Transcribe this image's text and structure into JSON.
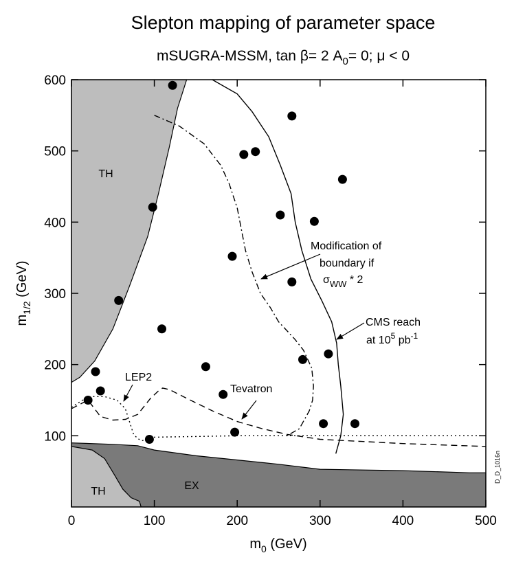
{
  "chart_data": {
    "type": "scatter",
    "title": "Slepton mapping of parameter space",
    "subtitle": {
      "prefix": "mSUGRA-MSSM, tan ",
      "beta": "β",
      "mid": "= 2 A",
      "sub": "0",
      "suffix": "= 0; ",
      "mu": "μ",
      "end": " < 0"
    },
    "xlabel": {
      "main": "m",
      "sub": "0",
      "rest": " (GeV)"
    },
    "ylabel": {
      "main": "m",
      "sub": "1/2",
      "rest": " (GeV)"
    },
    "xlim": [
      0,
      500
    ],
    "ylim": [
      0,
      600
    ],
    "xticks": [
      0,
      100,
      200,
      300,
      400,
      500
    ],
    "yticks": [
      100,
      200,
      300,
      400,
      500,
      600
    ],
    "grid": false,
    "points": [
      {
        "x": 122,
        "y": 592
      },
      {
        "x": 266,
        "y": 549
      },
      {
        "x": 208,
        "y": 495
      },
      {
        "x": 222,
        "y": 499
      },
      {
        "x": 327,
        "y": 460
      },
      {
        "x": 98,
        "y": 421
      },
      {
        "x": 252,
        "y": 410
      },
      {
        "x": 293,
        "y": 401
      },
      {
        "x": 194,
        "y": 352
      },
      {
        "x": 266,
        "y": 316
      },
      {
        "x": 57,
        "y": 290
      },
      {
        "x": 109,
        "y": 250
      },
      {
        "x": 279,
        "y": 207
      },
      {
        "x": 310,
        "y": 215
      },
      {
        "x": 162,
        "y": 197
      },
      {
        "x": 29,
        "y": 190
      },
      {
        "x": 35,
        "y": 163
      },
      {
        "x": 20,
        "y": 150
      },
      {
        "x": 183,
        "y": 158
      },
      {
        "x": 197,
        "y": 105
      },
      {
        "x": 94,
        "y": 95
      },
      {
        "x": 304,
        "y": 117
      },
      {
        "x": 342,
        "y": 117
      }
    ],
    "regions": {
      "theory_upper": {
        "label": "TH",
        "boundary": [
          [
            0,
            175
          ],
          [
            10,
            182
          ],
          [
            28,
            205
          ],
          [
            50,
            250
          ],
          [
            70,
            310
          ],
          [
            92,
            380
          ],
          [
            105,
            440
          ],
          [
            118,
            505
          ],
          [
            128,
            560
          ],
          [
            139,
            600
          ]
        ]
      },
      "theory_lower": {
        "label": "TH",
        "boundary": [
          [
            0,
            85
          ],
          [
            25,
            80
          ],
          [
            40,
            68
          ],
          [
            52,
            45
          ],
          [
            62,
            25
          ],
          [
            72,
            13
          ],
          [
            82,
            8
          ],
          [
            84,
            0
          ]
        ]
      },
      "excluded": {
        "label": "EX",
        "boundary": [
          [
            0,
            90
          ],
          [
            50,
            88
          ],
          [
            80,
            86
          ],
          [
            100,
            80
          ],
          [
            150,
            72
          ],
          [
            250,
            60
          ],
          [
            300,
            53
          ],
          [
            400,
            51
          ],
          [
            480,
            48
          ],
          [
            500,
            48
          ]
        ]
      }
    },
    "series": [
      {
        "name": "CMS reach",
        "style": "solid",
        "x": [
          170,
          200,
          218,
          238,
          252,
          265,
          270,
          278,
          289,
          302,
          314,
          320,
          322,
          325,
          328,
          325,
          319
        ],
        "y": [
          600,
          580,
          555,
          520,
          480,
          440,
          400,
          360,
          320,
          290,
          260,
          230,
          200,
          170,
          130,
          100,
          75
        ]
      },
      {
        "name": "Modification of boundary if sigma_WW * 2",
        "style": "dashdot",
        "x": [
          100,
          130,
          160,
          180,
          190,
          200,
          205,
          210,
          218,
          228,
          240,
          250,
          262,
          270,
          280,
          290,
          292,
          291,
          287,
          275,
          260
        ],
        "y": [
          550,
          535,
          510,
          480,
          455,
          420,
          390,
          360,
          330,
          300,
          280,
          260,
          245,
          235,
          220,
          195,
          170,
          150,
          135,
          110,
          100
        ]
      },
      {
        "name": "LEP2",
        "style": "dotted",
        "x": [
          0,
          20,
          40,
          55,
          65,
          70,
          75,
          80,
          85,
          90,
          95,
          100,
          150,
          200,
          300,
          400,
          500
        ],
        "y": [
          140,
          155,
          155,
          150,
          138,
          120,
          102,
          96,
          93,
          95,
          97,
          98,
          99,
          100,
          100,
          100,
          100
        ]
      },
      {
        "name": "Tevatron",
        "style": "dashed",
        "x": [
          0,
          20,
          35,
          50,
          65,
          80,
          95,
          105,
          110,
          118,
          140,
          170,
          200,
          230,
          260,
          300,
          350,
          400,
          450,
          500
        ],
        "y": [
          138,
          150,
          127,
          122,
          123,
          130,
          152,
          163,
          167,
          165,
          152,
          135,
          120,
          110,
          102,
          95,
          92,
          89,
          87,
          85
        ]
      }
    ],
    "annotations": {
      "lep2": "LEP2",
      "tevatron": "Tevatron",
      "modification": {
        "line1": "Modification of",
        "line2": "boundary if",
        "sigma": "σ",
        "sub": "WW",
        "rest": " * 2"
      },
      "cms": {
        "line1": "CMS reach",
        "line2a": "at 10",
        "sup1": "5",
        "line2b": " pb",
        "sup2": "-1"
      }
    },
    "figure_tag": "D_D_1016n"
  },
  "colors": {
    "background": "#ffffff",
    "theory_fill": "#bdbdbd",
    "excluded_fill": "#7a7a7a",
    "ink": "#000000"
  }
}
